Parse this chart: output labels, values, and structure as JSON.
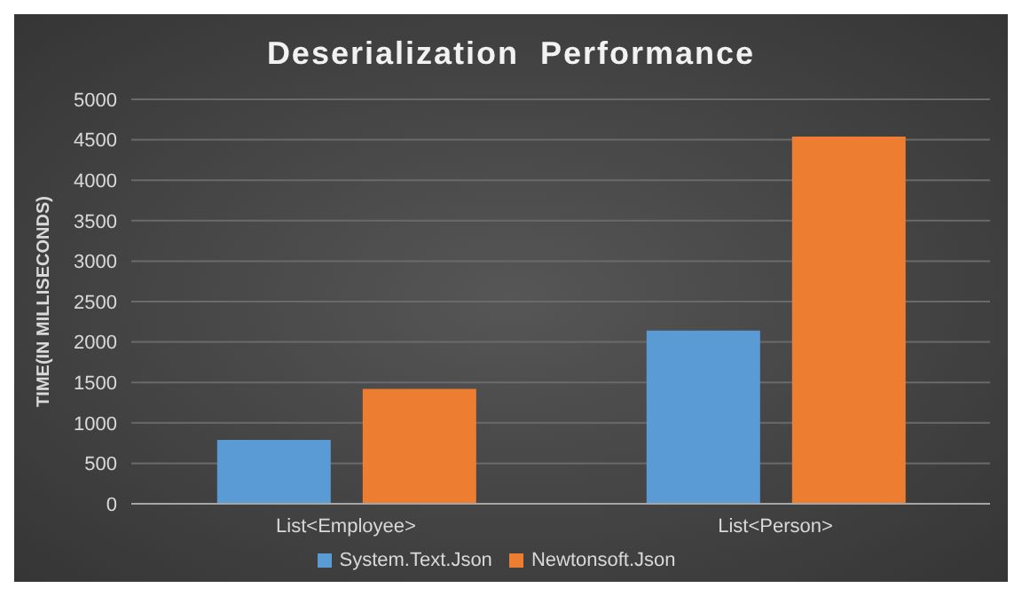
{
  "chart_data": {
    "type": "bar",
    "title": "Deserialization  Performance",
    "ylabel": "TIME(IN MILLISECONDS)",
    "categories": [
      "List<Employee>",
      "List<Person>"
    ],
    "series": [
      {
        "name": "System.Text.Json",
        "color": "#5b9bd5",
        "values": [
          790,
          2140
        ]
      },
      {
        "name": "Newtonsoft.Json",
        "color": "#ed7d31",
        "values": [
          1420,
          4540
        ]
      }
    ],
    "ylim": [
      0,
      5000
    ],
    "yticks": [
      0,
      500,
      1000,
      1500,
      2000,
      2500,
      3000,
      3500,
      4000,
      4500,
      5000
    ],
    "grid": "y",
    "legend": "bottom"
  }
}
